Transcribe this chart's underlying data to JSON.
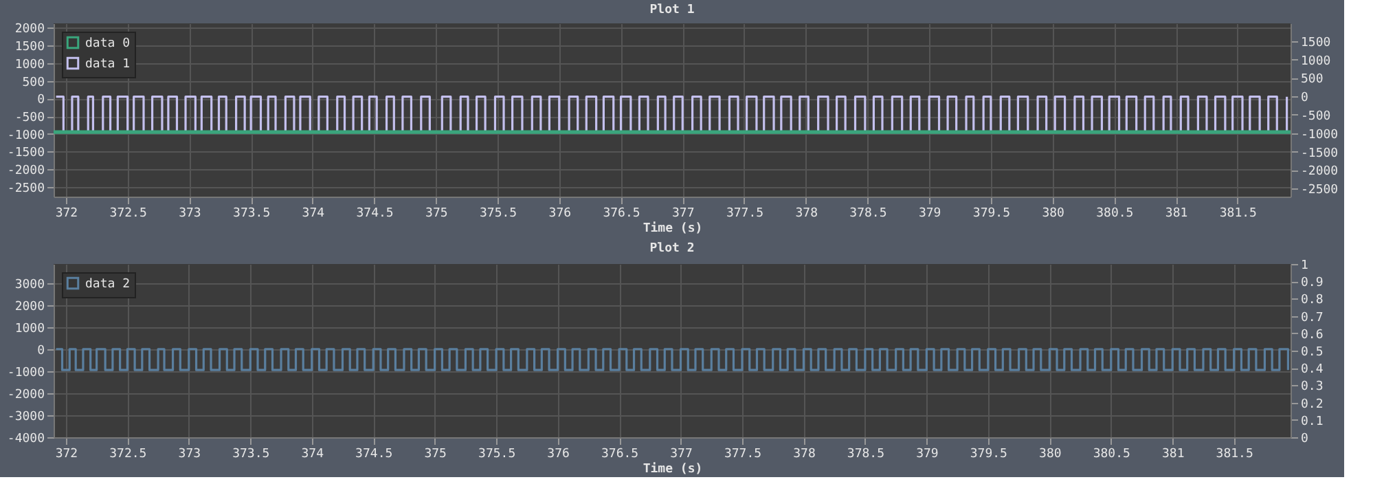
{
  "chart_data": [
    {
      "type": "step",
      "title": "Plot 1",
      "xlabel": "Time (s)",
      "xlim": [
        371.9,
        381.93
      ],
      "xticks": [
        372,
        372.5,
        373,
        373.5,
        374,
        374.5,
        375,
        375.5,
        376,
        376.5,
        377,
        377.5,
        378,
        378.5,
        379,
        379.5,
        380,
        380.5,
        381,
        381.5
      ],
      "ylim": [
        -2775,
        2125
      ],
      "yticks": [
        -2500,
        -2000,
        -1500,
        -1000,
        -500,
        0,
        500,
        1000,
        1500,
        2000
      ],
      "y2lim": [
        -2720,
        1980
      ],
      "y2ticks": [
        -2500,
        -2000,
        -1500,
        -1000,
        -500,
        0,
        500,
        1000,
        1500
      ],
      "grid": true,
      "legend": "top left",
      "x": [
        371.92,
        371.98,
        372.05,
        372.1,
        372.18,
        372.22,
        372.3,
        372.36,
        372.42,
        372.5,
        372.55,
        372.63,
        372.7,
        372.78,
        372.83,
        372.9,
        372.97,
        373.05,
        373.1,
        373.18,
        373.24,
        373.3,
        373.38,
        373.45,
        373.5,
        373.58,
        373.64,
        373.7,
        373.78,
        373.85,
        373.9,
        373.98,
        374.05,
        374.12,
        374.2,
        374.26,
        374.33,
        374.4,
        374.46,
        374.52,
        374.6,
        374.66,
        374.73,
        374.8,
        374.88,
        374.95,
        375.05,
        375.12,
        375.2,
        375.26,
        375.33,
        375.4,
        375.48,
        375.55,
        375.62,
        375.7,
        375.78,
        375.85,
        375.92,
        376.0,
        376.08,
        376.15,
        376.22,
        376.3,
        376.36,
        376.44,
        376.5,
        376.58,
        376.65,
        376.72,
        376.8,
        376.86,
        376.93,
        377.0,
        377.08,
        377.15,
        377.22,
        377.3,
        377.38,
        377.45,
        377.52,
        377.6,
        377.66,
        377.74,
        377.8,
        377.88,
        377.95,
        378.02,
        378.1,
        378.18,
        378.25,
        378.32,
        378.4,
        378.48,
        378.55,
        378.62,
        378.7,
        378.78,
        378.85,
        378.92,
        379.0,
        379.08,
        379.15,
        379.22,
        379.3,
        379.36,
        379.44,
        379.5,
        379.58,
        379.65,
        379.72,
        379.8,
        379.88,
        379.95,
        380.02,
        380.1,
        380.18,
        380.25,
        380.32,
        380.4,
        380.46,
        380.54,
        380.6,
        380.68,
        380.75,
        380.82,
        380.9,
        380.96,
        381.04,
        381.1,
        381.18,
        381.25,
        381.32,
        381.4,
        381.46,
        381.54,
        381.6,
        381.68,
        381.75,
        381.82,
        381.9
      ],
      "series": [
        {
          "name": "data 0",
          "color": "#3aa57c",
          "x": [
            371.9,
            381.93
          ],
          "values": [
            -950,
            -950
          ]
        },
        {
          "name": "data 1",
          "color": "#c4c0ee",
          "values": [
            50,
            -950,
            50,
            -950,
            50,
            -950,
            50,
            -950,
            50,
            -950,
            50,
            -950,
            50,
            -950,
            50,
            -950,
            50,
            -950,
            50,
            -950,
            50,
            -950,
            50,
            -950,
            50,
            -950,
            50,
            -950,
            50,
            -950,
            50,
            -950,
            50,
            -950,
            50,
            -950,
            50,
            -950,
            50,
            -950,
            50,
            -950,
            50,
            -950,
            50,
            -950,
            50,
            -950,
            50,
            -950,
            50,
            -950,
            50,
            -950,
            50,
            -950,
            50,
            -950,
            50,
            -950,
            50,
            -950,
            50,
            -950,
            50,
            -950,
            50,
            -950,
            50,
            -950,
            50,
            -950,
            50,
            -950,
            50,
            -950,
            50,
            -950,
            50,
            -950,
            50,
            -950,
            50,
            -950,
            50,
            -950,
            50,
            -950,
            50,
            -950,
            50,
            -950,
            50,
            -950,
            50,
            -950,
            50,
            -950,
            50,
            -950,
            50,
            -950,
            50,
            -950,
            50,
            -950,
            50,
            -950,
            50,
            -950,
            50,
            -950,
            50,
            -950,
            50,
            -950,
            50,
            -950,
            50,
            -950,
            50,
            -950,
            50,
            -950,
            50,
            -950,
            50,
            -950,
            50,
            -950,
            50,
            -950,
            50,
            -950,
            50,
            -950,
            50,
            -950,
            50,
            -950,
            50
          ]
        }
      ]
    },
    {
      "type": "step",
      "title": "Plot 2",
      "xlabel": "Time (s)",
      "xlim": [
        371.9,
        381.96
      ],
      "xticks": [
        372,
        372.5,
        373,
        373.5,
        374,
        374.5,
        375,
        375.5,
        376,
        376.5,
        377,
        377.5,
        378,
        378.5,
        379,
        379.5,
        380,
        380.5,
        381,
        381.5
      ],
      "ylim": [
        -4000,
        3860
      ],
      "yticks": [
        -4000,
        -3000,
        -2000,
        -1000,
        0,
        1000,
        2000,
        3000
      ],
      "y2lim": [
        0,
        1
      ],
      "y2ticks": [
        0,
        0.1,
        0.2,
        0.3,
        0.4,
        0.5,
        0.6,
        0.7,
        0.8,
        0.9,
        1
      ],
      "grid": true,
      "legend": "top left",
      "x": [
        371.92,
        371.97,
        372.03,
        372.08,
        372.14,
        372.2,
        372.25,
        372.32,
        372.38,
        372.44,
        372.5,
        372.56,
        372.62,
        372.68,
        372.75,
        372.8,
        372.87,
        372.93,
        373.0,
        373.06,
        373.12,
        373.18,
        373.25,
        373.31,
        373.37,
        373.43,
        373.5,
        373.56,
        373.62,
        373.68,
        373.75,
        373.81,
        373.87,
        373.93,
        374.0,
        374.06,
        374.12,
        374.18,
        374.25,
        374.31,
        374.37,
        374.43,
        374.5,
        374.56,
        374.62,
        374.68,
        374.75,
        374.81,
        374.87,
        374.93,
        375.0,
        375.06,
        375.12,
        375.18,
        375.25,
        375.31,
        375.37,
        375.43,
        375.5,
        375.56,
        375.62,
        375.68,
        375.75,
        375.81,
        375.87,
        375.93,
        376.0,
        376.06,
        376.12,
        376.18,
        376.25,
        376.31,
        376.37,
        376.43,
        376.5,
        376.56,
        376.62,
        376.68,
        376.75,
        376.81,
        376.87,
        376.93,
        377.0,
        377.06,
        377.12,
        377.18,
        377.25,
        377.31,
        377.37,
        377.43,
        377.5,
        377.56,
        377.62,
        377.68,
        377.75,
        377.81,
        377.87,
        377.93,
        378.0,
        378.06,
        378.12,
        378.18,
        378.25,
        378.31,
        378.37,
        378.43,
        378.5,
        378.56,
        378.62,
        378.68,
        378.75,
        378.81,
        378.87,
        378.93,
        379.0,
        379.06,
        379.12,
        379.18,
        379.25,
        379.31,
        379.37,
        379.43,
        379.5,
        379.56,
        379.62,
        379.68,
        379.75,
        379.81,
        379.87,
        379.93,
        380.0,
        380.06,
        380.12,
        380.18,
        380.25,
        380.31,
        380.37,
        380.43,
        380.5,
        380.56,
        380.62,
        380.68,
        380.75,
        380.81,
        380.87,
        380.93,
        381.0,
        381.06,
        381.12,
        381.18,
        381.25,
        381.31,
        381.37,
        381.43,
        381.5,
        381.56,
        381.62,
        381.68,
        381.75,
        381.81,
        381.87,
        381.94
      ],
      "series": [
        {
          "name": "data 2",
          "color": "#5a7f9f",
          "values": [
            0,
            -950,
            0,
            -950,
            0,
            -950,
            0,
            -950,
            0,
            -950,
            0,
            -950,
            0,
            -950,
            0,
            -950,
            0,
            -950,
            0,
            -950,
            0,
            -950,
            0,
            -950,
            0,
            -950,
            0,
            -950,
            0,
            -950,
            0,
            -950,
            0,
            -950,
            0,
            -950,
            0,
            -950,
            0,
            -950,
            0,
            -950,
            0,
            -950,
            0,
            -950,
            0,
            -950,
            0,
            -950,
            0,
            -950,
            0,
            -950,
            0,
            -950,
            0,
            -950,
            0,
            -950,
            0,
            -950,
            0,
            -950,
            0,
            -950,
            0,
            -950,
            0,
            -950,
            0,
            -950,
            0,
            -950,
            0,
            -950,
            0,
            -950,
            0,
            -950,
            0,
            -950,
            0,
            -950,
            0,
            -950,
            0,
            -950,
            0,
            -950,
            0,
            -950,
            0,
            -950,
            0,
            -950,
            0,
            -950,
            0,
            -950,
            0,
            -950,
            0,
            -950,
            0,
            -950,
            0,
            -950,
            0,
            -950,
            0,
            -950,
            0,
            -950,
            0,
            -950,
            0,
            -950,
            0,
            -950,
            0,
            -950,
            0,
            -950,
            0,
            -950,
            0,
            -950,
            0,
            -950,
            0,
            -950,
            0,
            -950,
            0,
            -950,
            0,
            -950,
            0,
            -950,
            0,
            -950,
            0,
            -950,
            0,
            -950,
            0,
            -950,
            0,
            -950,
            0,
            -950,
            0,
            -950,
            0,
            -950,
            0,
            -950,
            0,
            -950,
            0,
            -950
          ]
        }
      ]
    }
  ]
}
